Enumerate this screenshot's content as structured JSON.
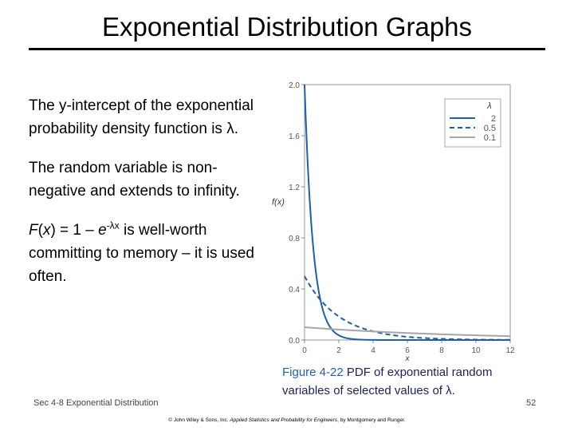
{
  "slide": {
    "title": "Exponential Distribution Graphs",
    "bullets": {
      "b1": "The y-intercept of the exponential probability density function is λ.",
      "b2": "The random variable is non-negative and extends to infinity.",
      "b3_F": "F",
      "b3_open": "(",
      "b3_x": "x",
      "b3_mid": ") = 1 – ",
      "b3_e": "e",
      "b3_exp": "-λx",
      "b3_tail": " is well-worth committing to memory – it is used often."
    },
    "caption_fig": "Figure 4-22",
    "caption_text": "  PDF of exponential random variables of selected values of λ.",
    "footer_left": "Sec 4-8 Exponential Distribution",
    "page_number": "52",
    "copyright_prefix": "© John Wiley & Sons, Inc. ",
    "copyright_italic": "Applied Statistics and Probability for Engineers",
    "copyright_suffix": ", by Montgomery and Runger."
  },
  "chart_data": {
    "type": "line",
    "ylabel": "f(x)",
    "xlabel": "x",
    "xlim": [
      0,
      12
    ],
    "ylim": [
      0,
      2.0
    ],
    "xticks": [
      "0",
      "2",
      "4",
      "6",
      "8",
      "10",
      "12"
    ],
    "yticks": [
      "0.0",
      "0.4",
      "0.8",
      "1.2",
      "1.6",
      "2.0"
    ],
    "legend_title": "λ",
    "legend_position": "top-right",
    "series": [
      {
        "name": "2",
        "lambda": 2,
        "style": "solid",
        "color": "#1f5fa8"
      },
      {
        "name": "0.5",
        "lambda": 0.5,
        "style": "dashed",
        "color": "#1f5fa8"
      },
      {
        "name": "0.1",
        "lambda": 0.1,
        "style": "solid",
        "color": "#a6a6a6"
      }
    ]
  }
}
